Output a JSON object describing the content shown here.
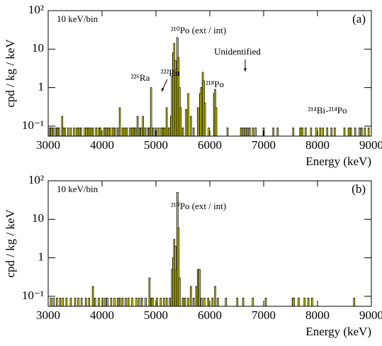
{
  "chart_data": [
    {
      "type": "bar",
      "panel": "(a)",
      "bin_label": "10 keV/bin",
      "xlabel": "Energy (keV)",
      "ylabel": "cpd / kg / keV",
      "log_y": true,
      "color": "#ffff00",
      "edge_color": "#000000",
      "xlim": [
        3000,
        9000
      ],
      "xticks": [
        3000,
        4000,
        5000,
        6000,
        7000,
        8000,
        9000
      ],
      "ylim": [
        0.055,
        100
      ],
      "yticks": [
        {
          "value": 0.1,
          "label": "10⁻¹"
        },
        1,
        10,
        {
          "value": 100,
          "label": "10²"
        }
      ],
      "annotations": [
        "²¹⁰Po (ext / int)",
        "Unidentified",
        "²²⁶Ra",
        "²²²Rn",
        "²¹⁸Po",
        "²¹⁴Bi-²¹⁴Po"
      ],
      "x": [
        3030,
        3060,
        3090,
        3140,
        3170,
        3200,
        3260,
        3280,
        3310,
        3370,
        3420,
        3480,
        3530,
        3570,
        3610,
        3680,
        3720,
        3750,
        3790,
        3830,
        3890,
        3940,
        3970,
        4040,
        4070,
        4110,
        4150,
        4200,
        4240,
        4290,
        4330,
        4380,
        4420,
        4460,
        4520,
        4560,
        4590,
        4620,
        4660,
        4700,
        4730,
        4760,
        4800,
        4850,
        4880,
        4910,
        4950,
        5000,
        5050,
        5100,
        5130,
        5160,
        5200,
        5240,
        5280,
        5300,
        5320,
        5340,
        5360,
        5380,
        5400,
        5420,
        5440,
        5460,
        5500,
        5560,
        5600,
        5650,
        5700,
        5780,
        5820,
        5840,
        5870,
        5890,
        5910,
        5980,
        6080,
        6100,
        6120,
        6330,
        6580,
        6620,
        6660,
        6700,
        6740,
        6800,
        6850,
        7000,
        7180,
        7260,
        7550,
        7680,
        7720,
        7780,
        7880,
        7980,
        8050,
        8100,
        8180,
        8260,
        8320,
        8500,
        8580,
        8620,
        8700,
        8780,
        8820,
        8880,
        8950
      ],
      "values": [
        0.09,
        0.09,
        0.09,
        0.09,
        0.09,
        0.09,
        0.18,
        0.09,
        0.09,
        0.09,
        0.09,
        0.09,
        0.09,
        0.09,
        0.09,
        0.09,
        0.09,
        0.09,
        0.09,
        0.09,
        0.09,
        0.09,
        0.09,
        0.09,
        0.09,
        0.09,
        0.09,
        0.09,
        0.09,
        0.09,
        0.3,
        0.09,
        0.09,
        0.09,
        0.09,
        0.09,
        0.09,
        0.09,
        0.18,
        0.09,
        0.09,
        0.18,
        0.09,
        0.09,
        0.09,
        1.0,
        0.09,
        0.09,
        0.09,
        0.09,
        0.09,
        0.09,
        0.3,
        0.09,
        0.18,
        2,
        8,
        14,
        5,
        3,
        20,
        6,
        1,
        0.3,
        0.09,
        0.27,
        0.7,
        0.18,
        0.09,
        0.3,
        0.7,
        1,
        2.5,
        1.5,
        0.4,
        0.09,
        0.7,
        0.9,
        0.3,
        0.09,
        0.09,
        0.09,
        0.09,
        0.09,
        0.09,
        0.09,
        0.09,
        0.09,
        0.09,
        0.09,
        0.09,
        0.09,
        0.09,
        0.09,
        0.09,
        0.09,
        0.09,
        0.09,
        0.09,
        0.09,
        0.09,
        0.09,
        0.09,
        0.09,
        0.09,
        0.09,
        0.09,
        0.09,
        0.09
      ]
    },
    {
      "type": "bar",
      "panel": "(b)",
      "bin_label": "10 keV/bin",
      "xlabel": "Energy (keV)",
      "ylabel": "cpd / kg / keV",
      "log_y": true,
      "color": "#ffff00",
      "edge_color": "#000000",
      "xlim": [
        3000,
        9000
      ],
      "xticks": [
        3000,
        4000,
        5000,
        6000,
        7000,
        8000,
        9000
      ],
      "ylim": [
        0.055,
        100
      ],
      "yticks": [
        {
          "value": 0.1,
          "label": "10⁻¹"
        },
        1,
        10,
        {
          "value": 100,
          "label": "10²"
        }
      ],
      "annotations": [
        "²¹⁰Po (ext / int)"
      ],
      "x": [
        3050,
        3100,
        3160,
        3220,
        3270,
        3340,
        3420,
        3500,
        3560,
        3620,
        3700,
        3760,
        3830,
        3870,
        3940,
        4010,
        4060,
        4100,
        4170,
        4230,
        4290,
        4330,
        4380,
        4440,
        4490,
        4560,
        4640,
        4690,
        4740,
        4810,
        4880,
        4910,
        4940,
        5020,
        5090,
        5150,
        5200,
        5260,
        5300,
        5320,
        5340,
        5360,
        5380,
        5400,
        5420,
        5440,
        5500,
        5540,
        5600,
        5650,
        5700,
        5750,
        5780,
        5810,
        5850,
        5900,
        5970,
        6050,
        6100,
        6150,
        6300,
        6510,
        6620,
        6800,
        7040,
        7540,
        7560,
        7650,
        7760,
        7830,
        7900,
        8680
      ],
      "values": [
        0.09,
        0.09,
        0.09,
        0.09,
        0.09,
        0.09,
        0.09,
        0.09,
        0.09,
        0.09,
        0.09,
        0.09,
        0.18,
        0.09,
        0.09,
        0.09,
        0.09,
        0.09,
        0.09,
        0.09,
        0.09,
        0.09,
        0.09,
        0.09,
        0.09,
        0.09,
        0.09,
        0.09,
        0.09,
        0.09,
        0.3,
        0.09,
        0.09,
        0.09,
        0.09,
        0.09,
        0.09,
        0.09,
        0.5,
        1,
        3,
        2,
        0.5,
        50,
        6,
        0.3,
        0.09,
        0.09,
        0.09,
        0.18,
        0.09,
        0.18,
        0.5,
        0.5,
        0.09,
        0.09,
        0.09,
        0.09,
        0.18,
        0.09,
        0.09,
        0.09,
        0.09,
        0.09,
        0.09,
        0.09,
        0.09,
        0.09,
        0.09,
        0.09,
        0.09,
        0.09
      ]
    }
  ]
}
